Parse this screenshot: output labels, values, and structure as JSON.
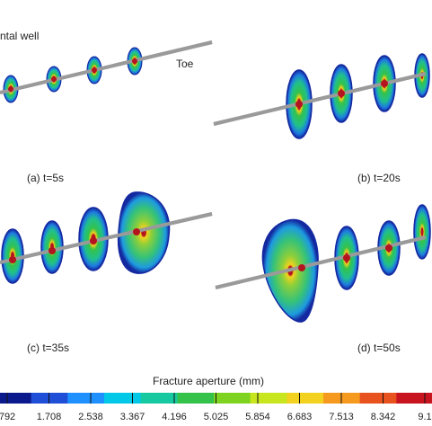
{
  "labels": {
    "well_label": "ntal well",
    "toe_label": "Toe",
    "caption_a": "(a) t=5s",
    "caption_b": "(b) t=20s",
    "caption_c": "(c) t=35s",
    "caption_d": "(d) t=50s"
  },
  "colorbar": {
    "title": "Fracture aperture (mm)",
    "ticks": [
      "792",
      "1.708",
      "2.538",
      "3.367",
      "4.196",
      "5.025",
      "5.854",
      "6.683",
      "7.513",
      "8.342",
      "9.1"
    ],
    "colors": [
      "#0a1a8c",
      "#1e4fd6",
      "#1e90ff",
      "#00c8e6",
      "#17c9a0",
      "#34c24a",
      "#7ed321",
      "#c8e61e",
      "#f2d21e",
      "#f59a1e",
      "#e8521e",
      "#c8141e"
    ]
  },
  "colors": {
    "wellbore": "#9a9a9a",
    "frac_edge": "#1428a0",
    "frac_low": "#1e7be0",
    "frac_mid": "#1fbf8f",
    "frac_high": "#8ccf3a",
    "center": "#b4141e"
  }
}
